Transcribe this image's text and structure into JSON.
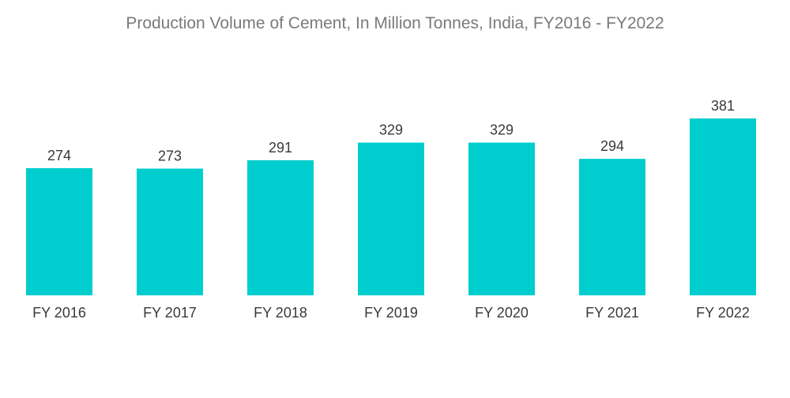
{
  "chart_data": {
    "type": "bar",
    "title": "Production Volume of Cement, In Million Tonnes, India, FY2016 - FY2022",
    "categories": [
      "FY 2016",
      "FY 2017",
      "FY 2018",
      "FY 2019",
      "FY 2020",
      "FY 2021",
      "FY 2022"
    ],
    "values": [
      274,
      273,
      291,
      329,
      329,
      294,
      381
    ],
    "xlabel": "",
    "ylabel": "",
    "ylim": [
      0,
      381
    ],
    "grid": false,
    "legend": "none",
    "colors": {
      "bar": "#00cdcd"
    }
  }
}
